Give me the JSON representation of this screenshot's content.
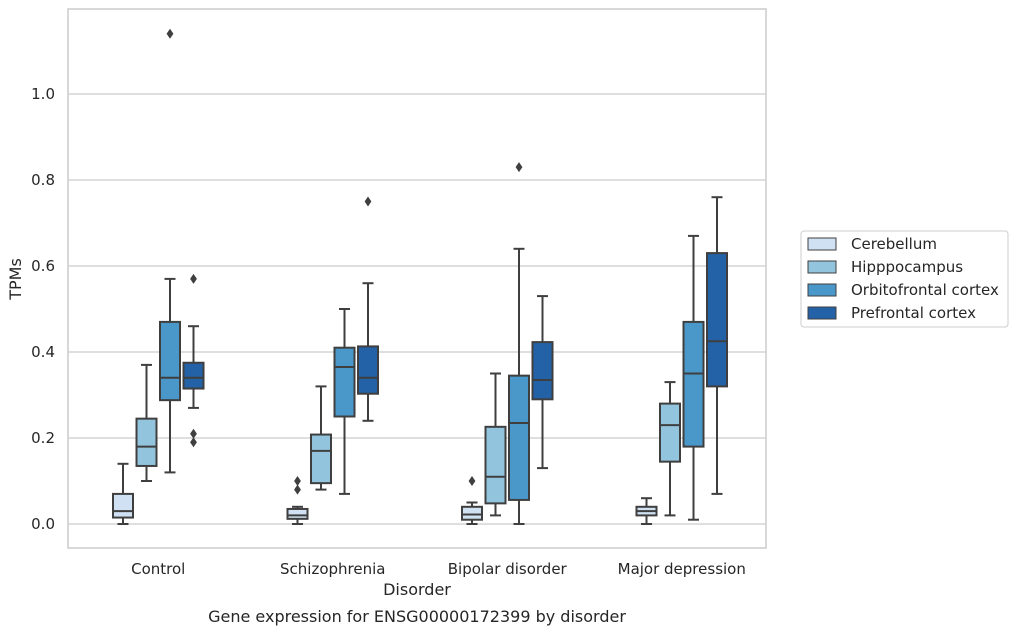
{
  "chart_data": {
    "type": "box",
    "xlabel": "Disorder",
    "ylabel": "TPMs",
    "caption": "Gene expression for ENSG00000172399 by disorder",
    "ylim": [
      -0.055,
      1.205
    ],
    "yticks": [
      "0.0",
      "0.2",
      "0.4",
      "0.6",
      "0.8",
      "1.0"
    ],
    "grid": true,
    "legend_position": "right",
    "categories": [
      "Control",
      "Schizophrenia",
      "Bipolar disorder",
      "Major depression"
    ],
    "series": [
      {
        "name": "Cerebellum",
        "color": "#cfe1f2",
        "boxes": [
          {
            "whislo": 0.0,
            "q1": 0.015,
            "med": 0.03,
            "q3": 0.07,
            "whishi": 0.14,
            "fliers": []
          },
          {
            "whislo": 0.0,
            "q1": 0.012,
            "med": 0.02,
            "q3": 0.035,
            "whishi": 0.04,
            "fliers": [
              0.08,
              0.1
            ]
          },
          {
            "whislo": 0.0,
            "q1": 0.01,
            "med": 0.022,
            "q3": 0.04,
            "whishi": 0.05,
            "fliers": [
              0.1
            ]
          },
          {
            "whislo": 0.0,
            "q1": 0.02,
            "med": 0.03,
            "q3": 0.04,
            "whishi": 0.06,
            "fliers": []
          }
        ]
      },
      {
        "name": "Hipppocampus",
        "color": "#93c4de",
        "boxes": [
          {
            "whislo": 0.1,
            "q1": 0.135,
            "med": 0.18,
            "q3": 0.245,
            "whishi": 0.37,
            "fliers": []
          },
          {
            "whislo": 0.08,
            "q1": 0.095,
            "med": 0.17,
            "q3": 0.208,
            "whishi": 0.32,
            "fliers": []
          },
          {
            "whislo": 0.02,
            "q1": 0.048,
            "med": 0.11,
            "q3": 0.226,
            "whishi": 0.35,
            "fliers": []
          },
          {
            "whislo": 0.02,
            "q1": 0.145,
            "med": 0.23,
            "q3": 0.28,
            "whishi": 0.33,
            "fliers": []
          }
        ]
      },
      {
        "name": "Orbitofrontal cortex",
        "color": "#4a98c9",
        "boxes": [
          {
            "whislo": 0.12,
            "q1": 0.288,
            "med": 0.34,
            "q3": 0.47,
            "whishi": 0.57,
            "fliers": [
              1.14
            ]
          },
          {
            "whislo": 0.07,
            "q1": 0.25,
            "med": 0.365,
            "q3": 0.41,
            "whishi": 0.5,
            "fliers": []
          },
          {
            "whislo": 0.0,
            "q1": 0.056,
            "med": 0.235,
            "q3": 0.345,
            "whishi": 0.64,
            "fliers": [
              0.83
            ]
          },
          {
            "whislo": 0.01,
            "q1": 0.18,
            "med": 0.35,
            "q3": 0.47,
            "whishi": 0.67,
            "fliers": []
          }
        ]
      },
      {
        "name": "Prefrontal cortex",
        "color": "#2462a8",
        "boxes": [
          {
            "whislo": 0.27,
            "q1": 0.315,
            "med": 0.34,
            "q3": 0.375,
            "whishi": 0.46,
            "fliers": [
              0.57,
              0.21,
              0.19
            ]
          },
          {
            "whislo": 0.24,
            "q1": 0.303,
            "med": 0.34,
            "q3": 0.413,
            "whishi": 0.56,
            "fliers": [
              0.75
            ]
          },
          {
            "whislo": 0.13,
            "q1": 0.29,
            "med": 0.335,
            "q3": 0.423,
            "whishi": 0.53,
            "fliers": []
          },
          {
            "whislo": 0.07,
            "q1": 0.32,
            "med": 0.425,
            "q3": 0.63,
            "whishi": 0.76,
            "fliers": []
          }
        ]
      }
    ]
  }
}
